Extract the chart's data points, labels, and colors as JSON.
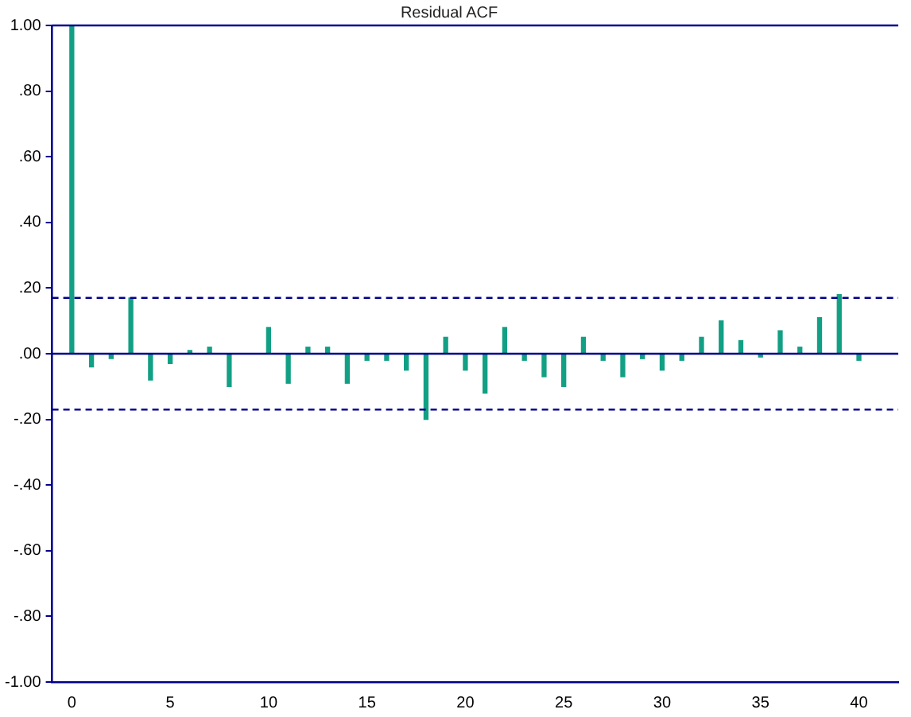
{
  "chart_data": {
    "type": "bar",
    "title": "Residual ACF",
    "x": [
      0,
      1,
      2,
      3,
      4,
      5,
      6,
      7,
      8,
      9,
      10,
      11,
      12,
      13,
      14,
      15,
      16,
      17,
      18,
      19,
      20,
      21,
      22,
      23,
      24,
      25,
      26,
      27,
      28,
      29,
      30,
      31,
      32,
      33,
      34,
      35,
      36,
      37,
      38,
      39,
      40
    ],
    "values": [
      1,
      -0.04,
      -0.015,
      0.17,
      -0.08,
      -0.03,
      0.01,
      0.02,
      -0.1,
      0,
      0.08,
      -0.09,
      0.02,
      0.02,
      -0.09,
      -0.02,
      -0.02,
      -0.05,
      -0.2,
      0.05,
      -0.05,
      -0.12,
      0.08,
      -0.02,
      -0.07,
      -0.1,
      0.05,
      -0.02,
      -0.07,
      -0.015,
      -0.05,
      -0.02,
      0.05,
      0.1,
      0.04,
      -0.01,
      0.07,
      0.02,
      0.11,
      0.18,
      -0.02
    ],
    "color": "#12a085",
    "xlim": [
      -1,
      42
    ],
    "xticks": [
      0,
      5,
      10,
      15,
      20,
      25,
      30,
      35,
      40
    ],
    "ylim": [
      -1,
      1
    ],
    "yticks": [
      {
        "value": -1,
        "label": "-1.00"
      },
      {
        "value": -0.8,
        "label": "-.80"
      },
      {
        "value": -0.6,
        "label": "-.60"
      },
      {
        "value": -0.4,
        "label": "-.40"
      },
      {
        "value": -0.2,
        "label": "-.20"
      },
      {
        "value": 0,
        "label": ".00"
      },
      {
        "value": 0.2,
        "label": ".20"
      },
      {
        "value": 0.4,
        "label": ".40"
      },
      {
        "value": 0.6,
        "label": ".60"
      },
      {
        "value": 0.8,
        "label": ".80"
      },
      {
        "value": 1,
        "label": "1.00"
      }
    ],
    "ref_lines": [
      {
        "axis": "y",
        "value": 0,
        "color": "#00008b",
        "line_style": "solid"
      },
      {
        "axis": "y",
        "value": 0.17,
        "color": "#00008b",
        "line_style": "dashed"
      },
      {
        "axis": "y",
        "value": -0.17,
        "color": "#00008b",
        "line_style": "dashed"
      }
    ],
    "grid": false,
    "legend": false
  }
}
